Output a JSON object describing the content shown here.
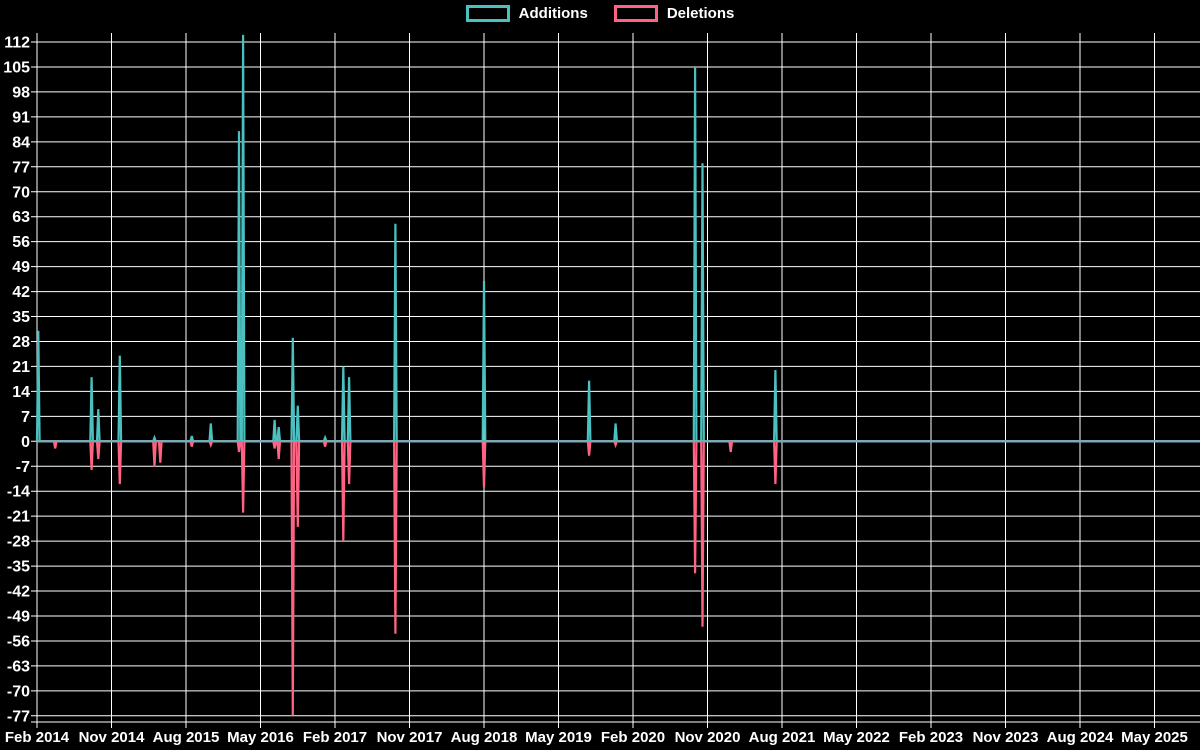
{
  "legend": {
    "items": [
      {
        "label": "Additions",
        "color": "#4bc0c0"
      },
      {
        "label": "Deletions",
        "color": "#ff6384"
      }
    ]
  },
  "colors": {
    "background": "#000000",
    "grid": "#ffffff",
    "text": "#ffffff",
    "additions": "#4bc0c0",
    "deletions": "#ff6384",
    "zero_line": "#7ea8b4"
  },
  "chart_data": {
    "type": "line",
    "title": "",
    "xlabel": "",
    "ylabel": "",
    "legend_position": "top-center",
    "grid": true,
    "ylim": [
      -77,
      112
    ],
    "y_axis": {
      "step": 7,
      "ticks": [
        112,
        105,
        98,
        91,
        84,
        77,
        70,
        63,
        56,
        49,
        42,
        35,
        28,
        21,
        14,
        7,
        0,
        -7,
        -14,
        -21,
        -28,
        -35,
        -42,
        -49,
        -56,
        -63,
        -70,
        -77
      ]
    },
    "x_axis": {
      "months_per_tick": 9,
      "labels": [
        "Feb 2014",
        "Nov 2014",
        "Aug 2015",
        "May 2016",
        "Feb 2017",
        "Nov 2017",
        "Aug 2018",
        "May 2019",
        "Feb 2020",
        "Nov 2020",
        "Aug 2021",
        "May 2022",
        "Feb 2023",
        "Nov 2023",
        "Aug 2024",
        "May 2025"
      ]
    },
    "series": [
      {
        "name": "Additions",
        "color": "#4bc0c0",
        "baseline": 0
      },
      {
        "name": "Deletions",
        "color": "#ff6384",
        "baseline": 0
      }
    ],
    "events": [
      {
        "date": "Feb 2014",
        "month": 0,
        "additions": 31,
        "deletions": 0
      },
      {
        "date": "Apr 2014",
        "month": 2.2,
        "additions": 0,
        "deletions": -2
      },
      {
        "date": "Aug 2014",
        "month": 6.6,
        "additions": 18,
        "deletions": -8
      },
      {
        "date": "Sep 2014",
        "month": 7.4,
        "additions": 9,
        "deletions": -5
      },
      {
        "date": "Dec 2014",
        "month": 10,
        "additions": 24,
        "deletions": -12
      },
      {
        "date": "Apr 2015",
        "month": 14.2,
        "additions": 1,
        "deletions": -7
      },
      {
        "date": "May 2015",
        "month": 14.9,
        "additions": 0,
        "deletions": -6
      },
      {
        "date": "Sep 2015",
        "month": 18.7,
        "additions": 1.5,
        "deletions": -1.5
      },
      {
        "date": "Nov 2015",
        "month": 21,
        "additions": 5,
        "deletions": -1
      },
      {
        "date": "Feb 2016",
        "month": 24.4,
        "additions": 87,
        "deletions": -3
      },
      {
        "date": "Mar 2016",
        "month": 24.9,
        "additions": 114,
        "deletions": -20
      },
      {
        "date": "Jun 2016",
        "month": 28.7,
        "additions": 6,
        "deletions": -2
      },
      {
        "date": "Jul 2016",
        "month": 29.2,
        "additions": 4,
        "deletions": -5
      },
      {
        "date": "Sep 2016",
        "month": 30.9,
        "additions": 29,
        "deletions": -77
      },
      {
        "date": "Oct 2016",
        "month": 31.5,
        "additions": 10,
        "deletions": -24
      },
      {
        "date": "Jan 2017",
        "month": 34.8,
        "additions": 1,
        "deletions": -1.5
      },
      {
        "date": "Mar 2017",
        "month": 37,
        "additions": 21,
        "deletions": -28
      },
      {
        "date": "Apr 2017",
        "month": 37.7,
        "additions": 18,
        "deletions": -12
      },
      {
        "date": "Sep 2017",
        "month": 43.3,
        "additions": 61,
        "deletions": -54
      },
      {
        "date": "Aug 2018",
        "month": 54,
        "additions": 45,
        "deletions": -13
      },
      {
        "date": "Sep 2019",
        "month": 66.7,
        "additions": 17,
        "deletions": -4
      },
      {
        "date": "Dec 2019",
        "month": 69.9,
        "additions": 5,
        "deletions": -1
      },
      {
        "date": "Sep 2020",
        "month": 79.5,
        "additions": 105,
        "deletions": -37
      },
      {
        "date": "Oct 2020",
        "month": 80.4,
        "additions": 78,
        "deletions": -52
      },
      {
        "date": "Jan 2021",
        "month": 83.8,
        "additions": 0,
        "deletions": -3
      },
      {
        "date": "Jul 2021",
        "month": 89.2,
        "additions": 20,
        "deletions": -12
      }
    ]
  }
}
